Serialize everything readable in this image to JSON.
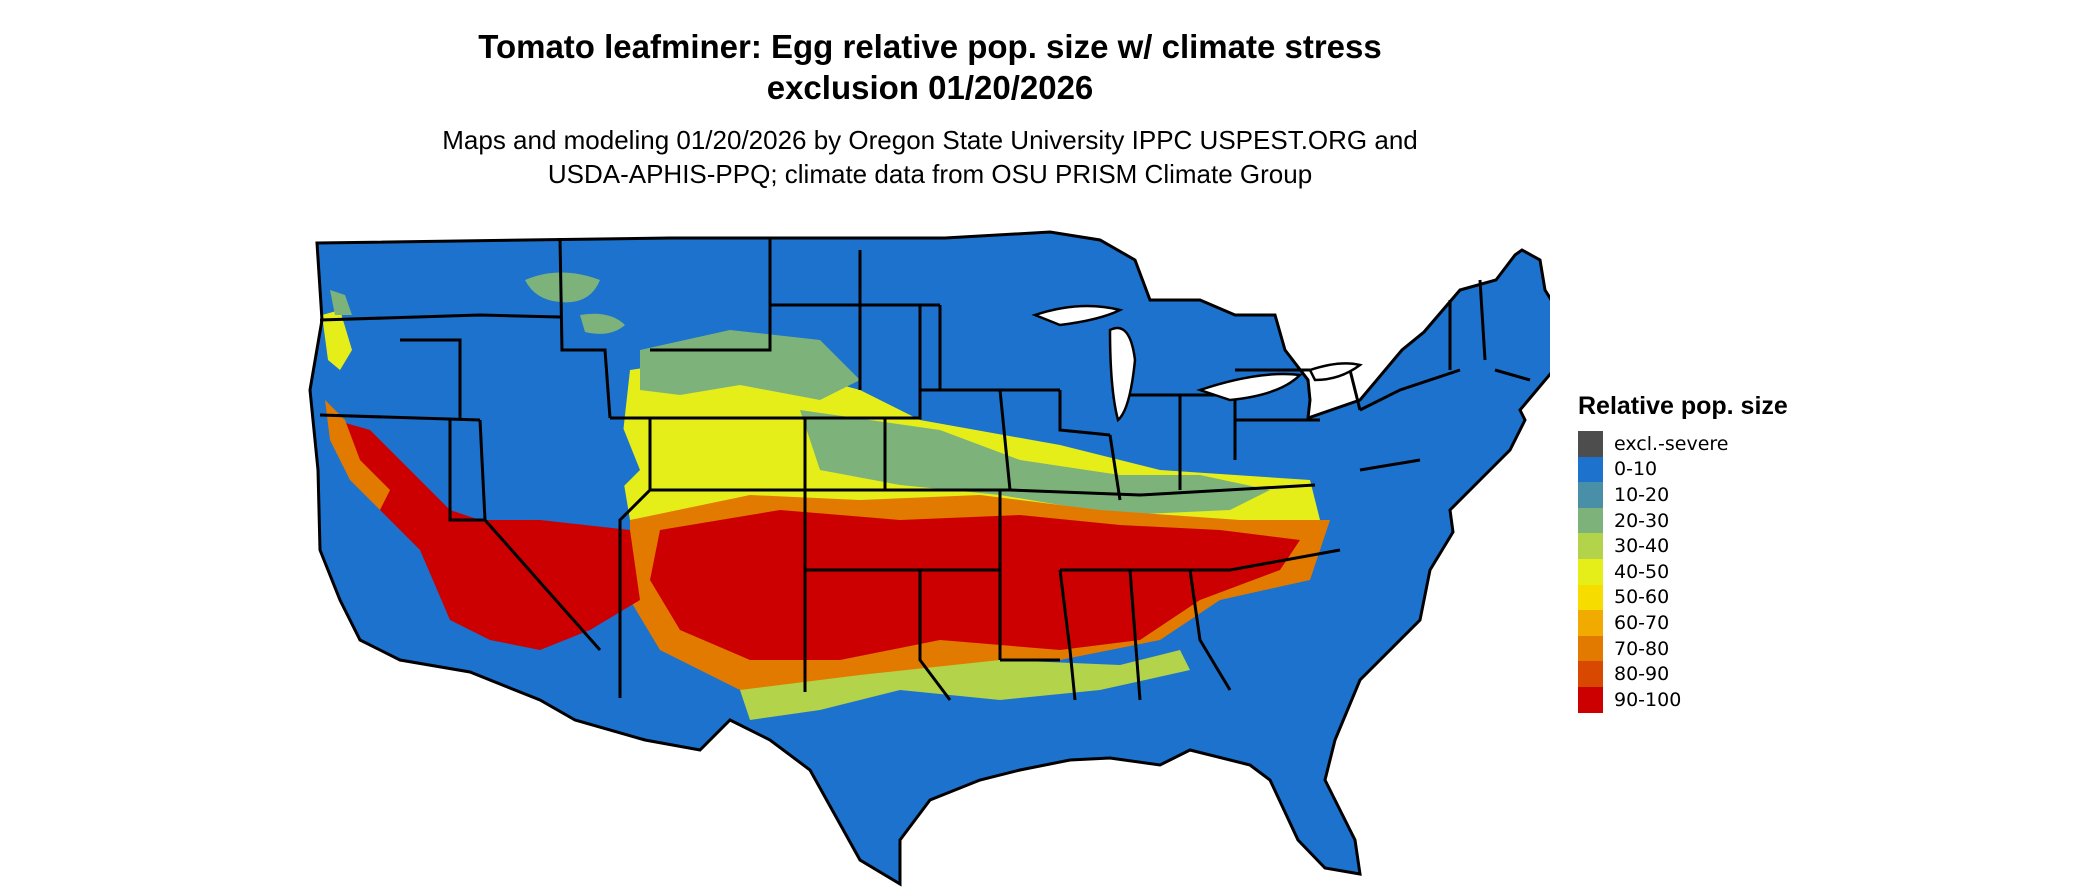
{
  "title": {
    "line1": "Tomato leafminer: Egg relative pop. size w/ climate stress",
    "line2": "exclusion 01/20/2026"
  },
  "subtitle": {
    "line1": "Maps and modeling 01/20/2026 by Oregon State University IPPC USPEST.ORG and",
    "line2": "USDA-APHIS-PPQ; climate data from OSU PRISM Climate Group"
  },
  "legend": {
    "title": "Relative pop. size",
    "items": [
      {
        "label": "excl.-severe",
        "color": "#4d4d4d"
      },
      {
        "label": "0-10",
        "color": "#1c72cc"
      },
      {
        "label": "10-20",
        "color": "#4a8fa8"
      },
      {
        "label": "20-30",
        "color": "#7db37a"
      },
      {
        "label": "30-40",
        "color": "#b3d34b"
      },
      {
        "label": "40-50",
        "color": "#e6ee1a"
      },
      {
        "label": "50-60",
        "color": "#f7dc00"
      },
      {
        "label": "60-70",
        "color": "#f0aa00"
      },
      {
        "label": "70-80",
        "color": "#e37a00"
      },
      {
        "label": "80-90",
        "color": "#d84800"
      },
      {
        "label": "90-100",
        "color": "#cc0000"
      }
    ]
  }
}
